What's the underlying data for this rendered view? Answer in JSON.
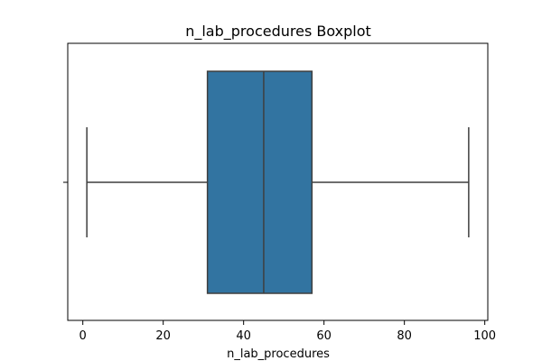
{
  "chart_data": {
    "type": "box",
    "title": "n_lab_procedures Boxplot",
    "xlabel": "n_lab_procedures",
    "ylabel": "",
    "xlim": [
      -3.75,
      100.75
    ],
    "xticks": [
      0,
      20,
      40,
      60,
      80,
      100
    ],
    "xtick_labels": [
      "0",
      "20",
      "40",
      "60",
      "80",
      "100"
    ],
    "orientation": "horizontal",
    "grid": false,
    "box": {
      "whisker_low": 1,
      "q1": 31,
      "median": 45,
      "q3": 57,
      "whisker_high": 96
    },
    "colors": {
      "box_fill": "#3274a1",
      "line": "#3f3f3f",
      "axes": "#000000"
    }
  }
}
